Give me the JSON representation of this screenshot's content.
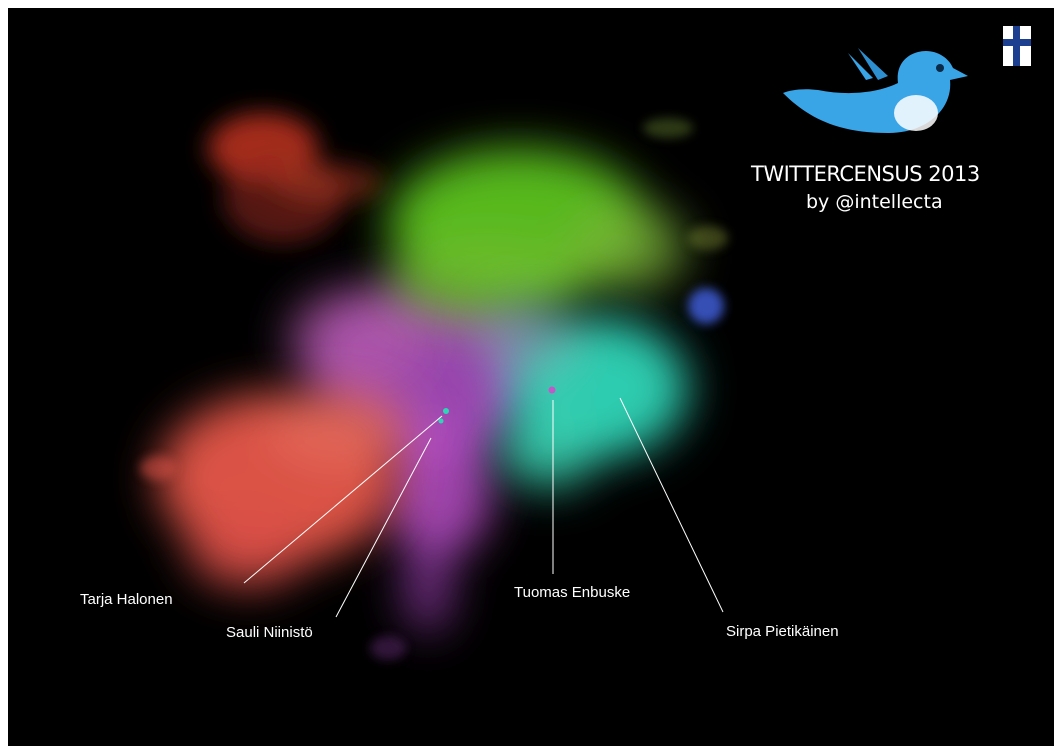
{
  "logo": {
    "title": "TWITTERCENSUS 2013",
    "byline": "by @intellecta",
    "bird_icon": "twitter-bird-icon",
    "flag_icon": "finland-flag-icon"
  },
  "callouts": [
    {
      "name": "Tarja Halonen"
    },
    {
      "name": "Sauli Niinistö"
    },
    {
      "name": "Tuomas Enbuske"
    },
    {
      "name": "Sirpa Pietikäinen"
    }
  ],
  "colors": {
    "background": "#000000",
    "green_cluster": "#5bc21e",
    "cyan_cluster": "#2ed6b8",
    "red_cluster": "#e6574a",
    "purple_cluster": "#b84fc8",
    "blue_cluster": "#3b57c9",
    "dark_red_cluster": "#c0341f",
    "bird_blue": "#3aa5e6"
  }
}
